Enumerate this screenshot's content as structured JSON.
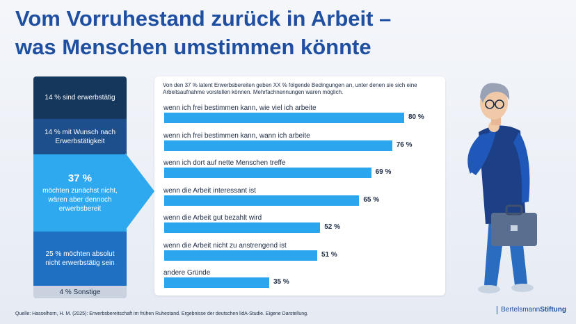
{
  "title_line1": "Vom Vorruhestand zurück in Arbeit –",
  "title_line2": "was Menschen umstimmen könnte",
  "stack": {
    "seg1": "14 % sind erwerbstätig",
    "seg2": "14 % mit Wunsch nach Erwerbstätigkeit",
    "seg3_big": "37 %",
    "seg3_text": "möchten zunächst nicht, wären aber dennoch erwerbsbereit",
    "seg4": "25 % möchten absolut nicht erwerbstätig sein",
    "seg5": "4 % Sonstige"
  },
  "colors": {
    "bar": "#2aa6ef",
    "seg1": "#16375c",
    "seg2": "#1d4f8c",
    "seg3": "#2ea8ee",
    "seg4": "#1f6fc2",
    "seg5": "#c9d2de",
    "title": "#1f4fa0"
  },
  "chart_data": {
    "type": "bar",
    "orientation": "horizontal",
    "intro": "Von den 37 % latent Erwerbsbereiten geben XX % folgende Bedingungen an, unter denen sie sich eine Arbeitsaufnahme vorstellen können. Mehrfachnennungen waren möglich.",
    "categories": [
      "wenn ich frei bestimmen kann, wie viel ich arbeite",
      "wenn ich frei bestimmen kann, wann ich arbeite",
      "wenn ich dort auf nette Menschen treffe",
      "wenn die Arbeit interessant ist",
      "wenn die Arbeit gut bezahlt wird",
      "wenn die Arbeit nicht zu anstrengend ist",
      "andere Gründe"
    ],
    "values": [
      80,
      76,
      69,
      65,
      52,
      51,
      35
    ],
    "value_labels": [
      "80 %",
      "76 %",
      "69 %",
      "65 %",
      "52 %",
      "51 %",
      "35 %"
    ],
    "unit": "%",
    "xlim": [
      0,
      100
    ],
    "grid": false
  },
  "source": "Quelle: Hasselhorn, H. M. (2025): Erwerbsbereitschaft im frühen Ruhestand. Ergebnisse der deutschen lidA-Studie. Eigene Darstellung.",
  "brand_part1": "Bertelsmann",
  "brand_part2": "Stiftung"
}
